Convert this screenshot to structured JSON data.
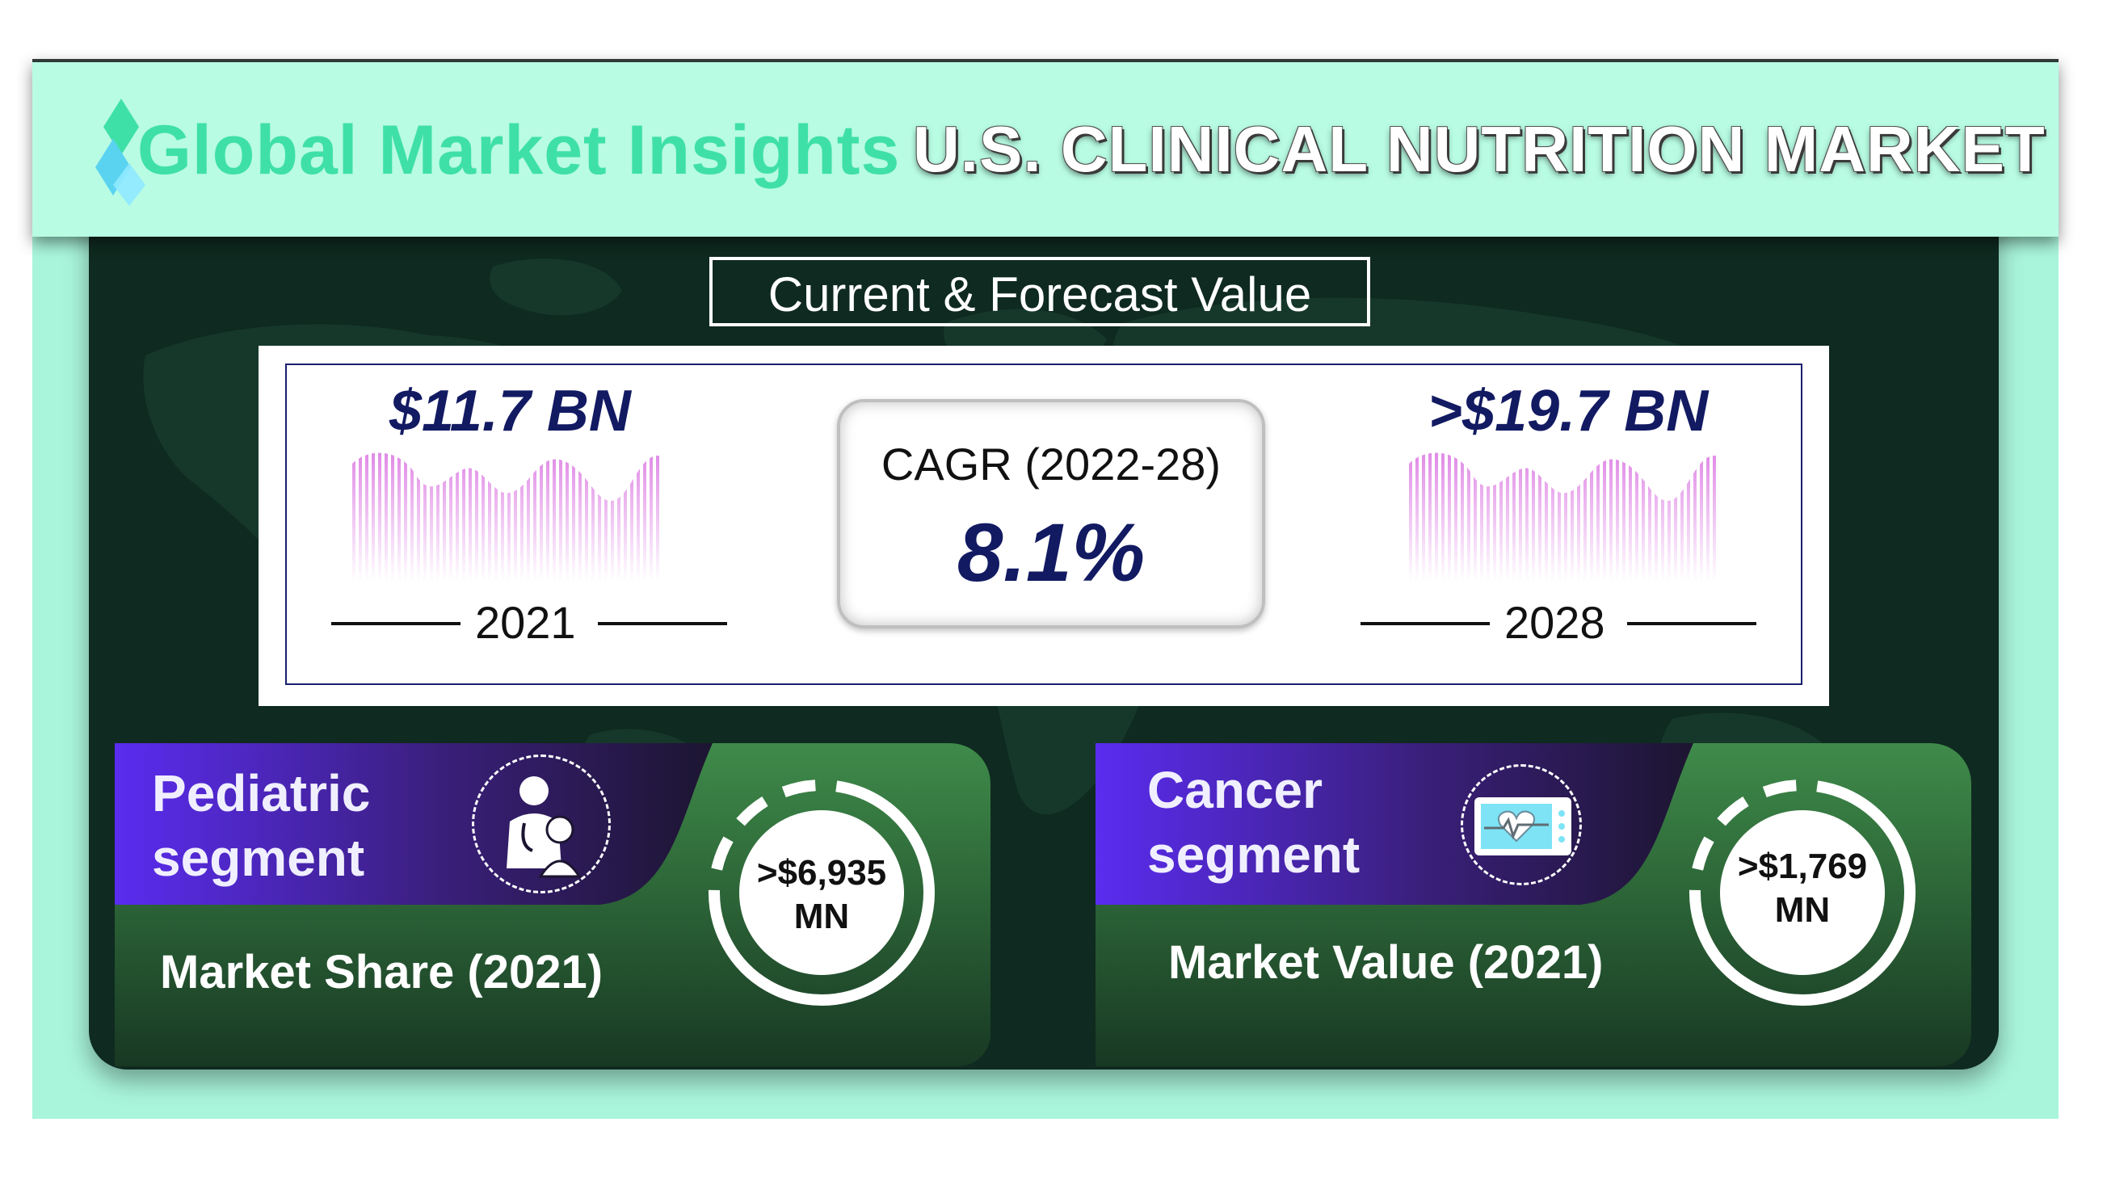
{
  "header": {
    "logo_text": "Global Market Insights",
    "title": "U.S. CLINICAL NUTRITION MARKET"
  },
  "forecast": {
    "label": "Current & Forecast Value",
    "current": {
      "value": "$11.7 BN",
      "year": "2021"
    },
    "forecast": {
      "value": ">$19.7 BN",
      "year": "2028"
    },
    "cagr_label": "CAGR (2022-28)",
    "cagr_value": "8.1%"
  },
  "segments": [
    {
      "name_line1": "Pediatric",
      "name_line2": "segment",
      "metric": "Market Share (2021)",
      "value_line1": ">$6,935",
      "value_line2": "MN",
      "icon": "doctor-child-icon"
    },
    {
      "name_line1": "Cancer",
      "name_line2": "segment",
      "metric": "Market Value (2021)",
      "value_line1": ">$1,769",
      "value_line2": "MN",
      "icon": "heart-monitor-icon"
    }
  ],
  "colors": {
    "mint": "#a9f5dc",
    "header_mint": "#b8fce3",
    "dark_panel": "#0f2a20",
    "navy_text": "#121a62",
    "logo_green": "#3ee0a8",
    "segment_purple": "#5b2be0",
    "segment_green": "#3d8a48"
  }
}
